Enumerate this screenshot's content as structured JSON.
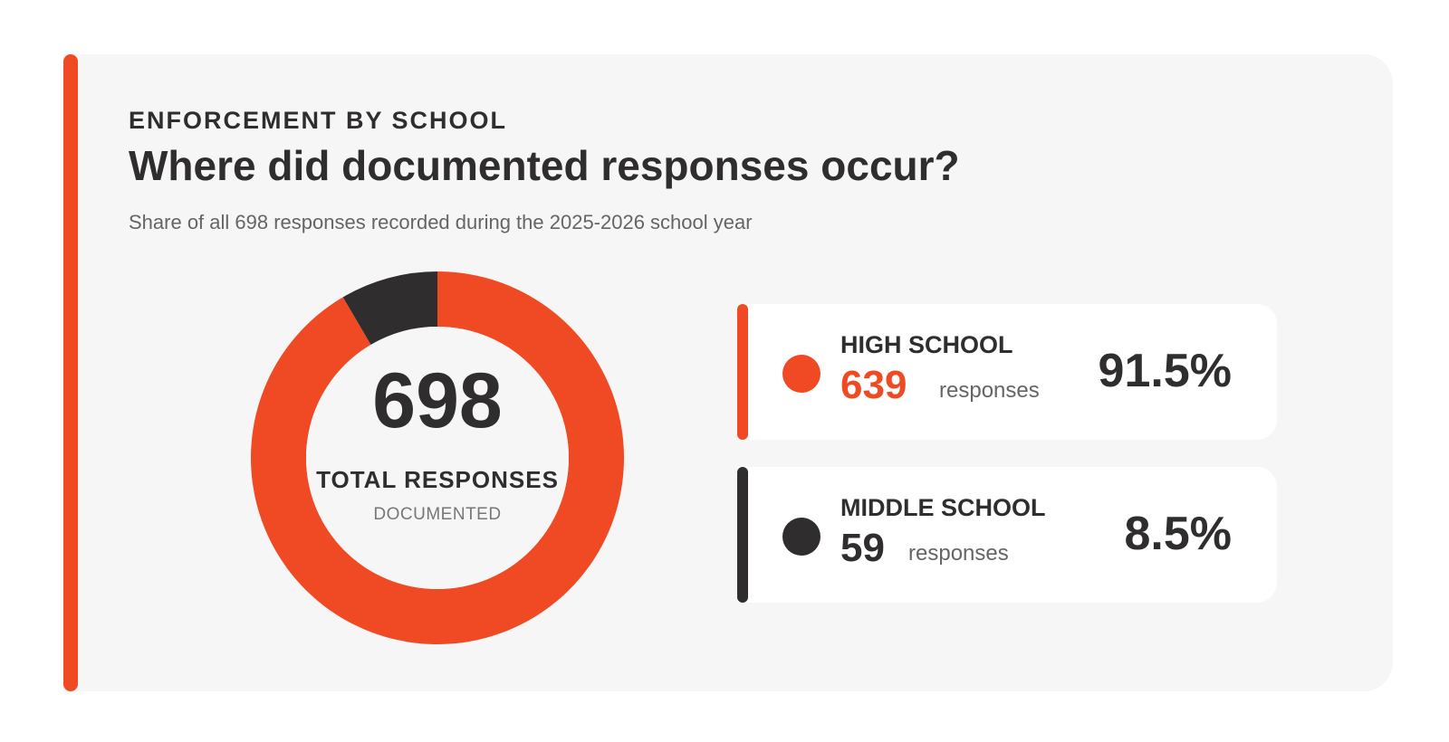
{
  "header": {
    "eyebrow": "ENFORCEMENT BY SCHOOL",
    "title": "Where did documented responses occur?",
    "subtitle": "Share of all 698 responses recorded during the 2025-2026 school year"
  },
  "center": {
    "total": "698",
    "label": "TOTAL RESPONSES",
    "sub": "DOCUMENTED"
  },
  "legend": [
    {
      "name": "HIGH SCHOOL",
      "count": "639",
      "unit": "responses",
      "pct": "91.5%"
    },
    {
      "name": "MIDDLE SCHOOL",
      "count": "59",
      "unit": "responses",
      "pct": "8.5%"
    }
  ],
  "colors": {
    "accent": "#f04a24",
    "dark": "#2f2d2e",
    "card": "#f6f6f6"
  },
  "chart_data": {
    "type": "pie",
    "categories": [
      "HIGH SCHOOL",
      "MIDDLE SCHOOL"
    ],
    "values": [
      639,
      59
    ],
    "percentages": [
      91.5,
      8.5
    ],
    "total": 698,
    "colors": [
      "#f04a24",
      "#2f2d2e"
    ]
  }
}
